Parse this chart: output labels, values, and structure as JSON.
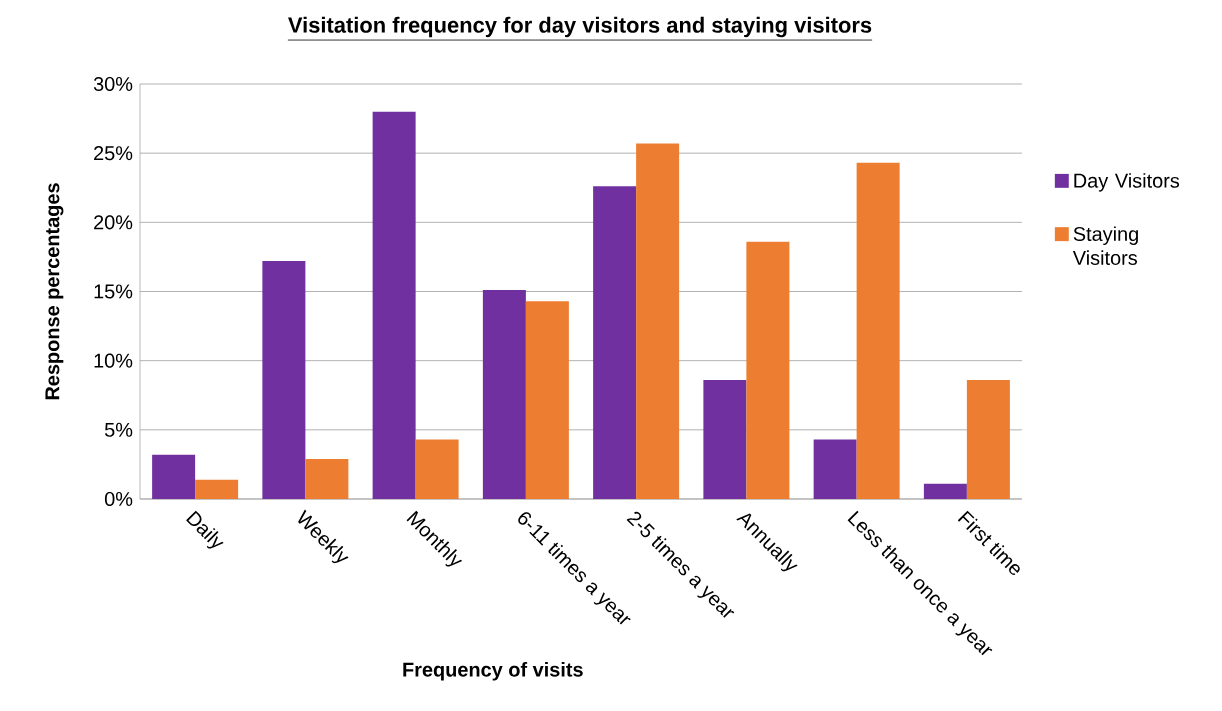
{
  "chart_data": {
    "type": "bar",
    "title": "**Visitation frequency for day visitors and staying visitors**",
    "xlabel": "Frequency of visits",
    "ylabel": "Response percentages",
    "categories": [
      "Daily",
      "Weekly",
      "Monthly",
      "6-11 times a year",
      "2-5  times a year",
      "Annually",
      "Less  than once a year",
      "First time"
    ],
    "series": [
      {
        "name": "Day Visitors",
        "color": "#7030a0",
        "values": [
          3.2,
          17.2,
          28.0,
          15.1,
          22.6,
          8.6,
          4.3,
          1.1
        ]
      },
      {
        "name": "Staying Visitors",
        "color": "#ed7d31",
        "values": [
          1.4,
          2.9,
          4.3,
          14.3,
          25.7,
          18.6,
          24.3,
          8.6
        ]
      }
    ],
    "ylim": [
      0,
      30
    ],
    "yticks": [
      {
        "value": 0,
        "label": "0%"
      },
      {
        "value": 5,
        "label": "5%"
      },
      {
        "value": 10,
        "label": "10%"
      },
      {
        "value": 15,
        "label": "15%"
      },
      {
        "value": 20,
        "label": "20%"
      },
      {
        "value": 25,
        "label": "25%"
      },
      {
        "value": 30,
        "label": "30%"
      }
    ],
    "grid": "y",
    "legend": "right"
  }
}
